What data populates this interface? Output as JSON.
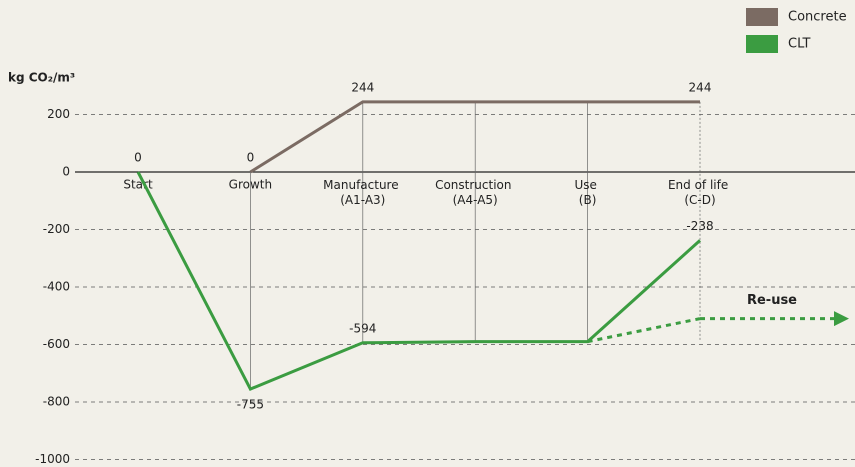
{
  "chart_data": {
    "type": "line",
    "y_label": "kg CO₂/m³",
    "categories": [
      "Start",
      "Growth",
      "Manufacture (A1-A3)",
      "Construction (A4-A5)",
      "Use (B)",
      "End of life (C-D)"
    ],
    "series": [
      {
        "name": "Concrete",
        "color": "#7b6b63",
        "values": [
          null,
          0,
          244,
          244,
          244,
          244
        ],
        "value_labels": [
          null,
          "0",
          "244",
          null,
          null,
          "244"
        ]
      },
      {
        "name": "CLT",
        "color": "#3b9c41",
        "values": [
          0,
          -755,
          -594,
          -590,
          -590,
          -238
        ],
        "value_labels": [
          "0",
          "-755",
          "-594",
          null,
          null,
          "-238"
        ]
      }
    ],
    "reuse": {
      "label": "Re-use",
      "color": "#3b9c41",
      "values": [
        null,
        null,
        null,
        null,
        -590,
        -510
      ]
    },
    "ylim": [
      -1000,
      300
    ],
    "yticks": [
      200,
      0,
      -200,
      -400,
      -600,
      -800,
      -1000
    ],
    "grid": true
  }
}
